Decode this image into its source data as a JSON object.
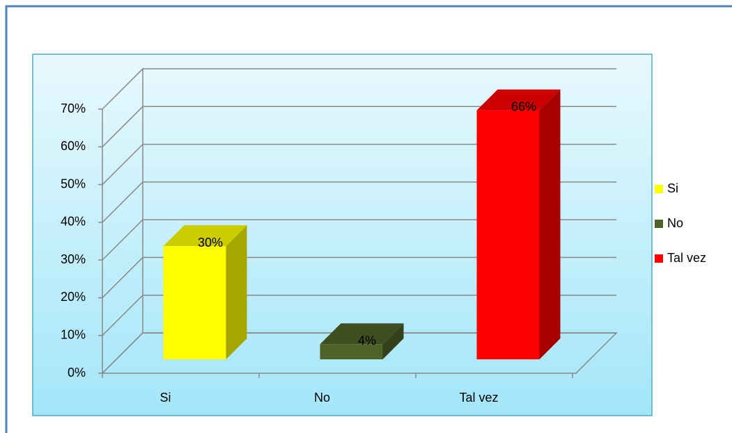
{
  "chart_data": {
    "type": "bar3d",
    "categories": [
      "Si",
      "No",
      "Tal vez"
    ],
    "values": [
      30,
      4,
      66
    ],
    "value_labels": [
      "30%",
      "4%",
      "66%"
    ],
    "colors": [
      "#ffff00",
      "#4f6228",
      "#ff0000"
    ],
    "ylim": [
      0,
      70
    ],
    "yticks": [
      {
        "value": 0,
        "label": "0%"
      },
      {
        "value": 10,
        "label": "10%"
      },
      {
        "value": 20,
        "label": "20%"
      },
      {
        "value": 30,
        "label": "30%"
      },
      {
        "value": 40,
        "label": "40%"
      },
      {
        "value": 50,
        "label": "50%"
      },
      {
        "value": 60,
        "label": "60%"
      },
      {
        "value": 70,
        "label": "70%"
      }
    ],
    "grid": true,
    "legend": "right"
  }
}
